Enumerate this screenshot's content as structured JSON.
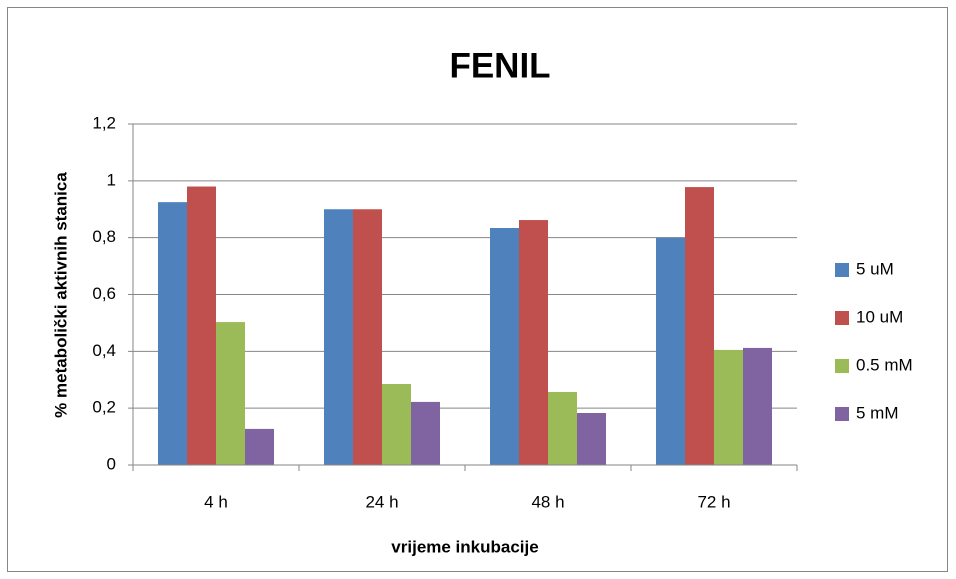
{
  "chart_data": {
    "type": "bar",
    "title": "FENIL",
    "x_label": "vrijeme inkubacije",
    "y_label": "% metabolički aktivnih stanica",
    "categories": [
      "4 h",
      "24 h",
      "48 h",
      "72 h"
    ],
    "series": [
      {
        "name": "5 uM",
        "color": "#4f81bd",
        "values": [
          0.925,
          0.9,
          0.834,
          0.8
        ]
      },
      {
        "name": "10 uM",
        "color": "#c0504d",
        "values": [
          0.98,
          0.9,
          0.862,
          0.978
        ]
      },
      {
        "name": "0.5 mM",
        "color": "#9bbb59",
        "values": [
          0.503,
          0.285,
          0.257,
          0.405
        ]
      },
      {
        "name": "5 mM",
        "color": "#8064a2",
        "values": [
          0.127,
          0.222,
          0.183,
          0.412
        ]
      }
    ],
    "ylim": [
      0,
      1.2
    ],
    "yticks": [
      0,
      {
        "value": 0.2,
        "label": "0,2"
      },
      {
        "value": 0.4,
        "label": "0,4"
      },
      {
        "value": 0.6,
        "label": "0,6"
      },
      {
        "value": 0.8,
        "label": "0,8"
      },
      1,
      {
        "value": 1.2,
        "label": "1,2"
      }
    ],
    "grid": true,
    "legend": "right"
  }
}
